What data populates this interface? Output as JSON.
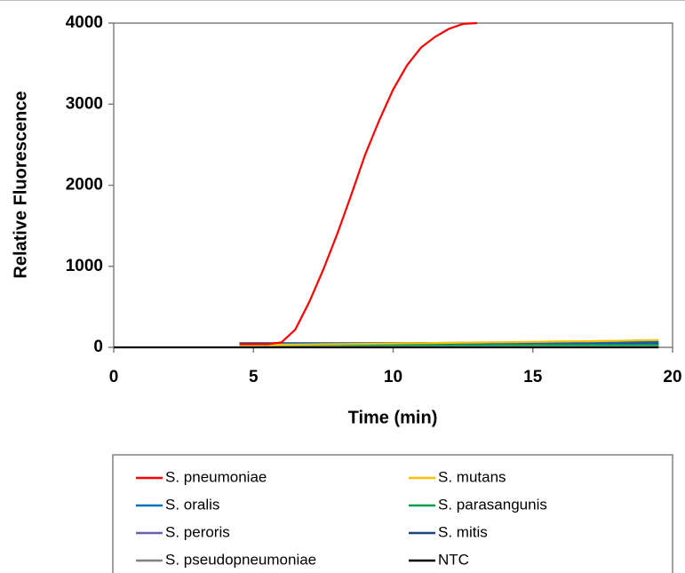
{
  "chart_data": {
    "type": "line",
    "xlabel": "Time (min)",
    "ylabel": "Relative Fluorescence",
    "x": [
      0,
      0.5,
      1,
      1.5,
      2,
      2.5,
      3,
      3.5,
      4,
      4.5,
      5,
      5.5,
      6,
      6.5,
      7,
      7.5,
      8,
      8.5,
      9,
      9.5,
      10,
      10.5,
      11,
      11.5,
      12,
      12.5,
      13,
      13.5,
      14,
      14.5,
      15,
      15.5,
      16,
      16.5,
      17,
      17.5,
      18,
      18.5,
      19,
      19.5
    ],
    "xlim": [
      0,
      20
    ],
    "xticks": [
      0,
      5,
      10,
      15,
      20
    ],
    "ylim": [
      0,
      4000
    ],
    "yticks": [
      0,
      1000,
      2000,
      3000,
      4000
    ],
    "legend": "bottom",
    "series": [
      {
        "name": "S. pneumoniae",
        "color": "#ff0000",
        "values": [
          null,
          null,
          null,
          null,
          null,
          null,
          null,
          null,
          null,
          40,
          40,
          40,
          60,
          220,
          560,
          960,
          1400,
          1880,
          2380,
          2800,
          3180,
          3480,
          3700,
          3830,
          3930,
          3990,
          4000,
          null,
          null,
          null,
          null,
          null,
          null,
          null,
          null,
          null,
          null,
          null,
          null,
          null
        ]
      },
      {
        "name": "S. mutans",
        "color": "#ffc000",
        "values": [
          null,
          null,
          null,
          null,
          null,
          null,
          null,
          null,
          null,
          30,
          30,
          32,
          33,
          35,
          36,
          38,
          40,
          42,
          44,
          46,
          48,
          50,
          52,
          54,
          56,
          58,
          60,
          62,
          64,
          66,
          68,
          70,
          72,
          74,
          76,
          78,
          80,
          84,
          88,
          90
        ]
      },
      {
        "name": "S. oralis",
        "color": "#0070c0",
        "values": [
          null,
          null,
          null,
          null,
          null,
          null,
          null,
          null,
          null,
          40,
          41,
          42,
          43,
          44,
          45,
          46,
          47,
          48,
          49,
          50,
          51,
          52,
          53,
          54,
          55,
          56,
          57,
          58,
          59,
          60,
          61,
          62,
          63,
          64,
          65,
          66,
          67,
          68,
          69,
          70
        ]
      },
      {
        "name": "S. parasangunis",
        "color": "#00a050",
        "values": [
          null,
          null,
          null,
          null,
          null,
          null,
          null,
          null,
          null,
          30,
          30,
          30,
          30,
          30,
          30,
          30,
          30,
          30,
          30,
          30,
          30,
          30,
          30,
          30,
          30,
          30,
          30,
          30,
          30,
          30,
          30,
          30,
          30,
          30,
          30,
          30,
          30,
          30,
          30,
          30
        ]
      },
      {
        "name": "S. peroris",
        "color": "#7060b0",
        "values": [
          null,
          null,
          null,
          null,
          null,
          null,
          null,
          null,
          null,
          35,
          35,
          35,
          35,
          35,
          35,
          35,
          35,
          35,
          35,
          35,
          35,
          35,
          35,
          35,
          35,
          35,
          35,
          35,
          35,
          35,
          35,
          35,
          35,
          35,
          35,
          35,
          35,
          35,
          35,
          35
        ]
      },
      {
        "name": "S. mitis",
        "color": "#1f3f7f",
        "values": [
          null,
          null,
          null,
          null,
          null,
          null,
          null,
          null,
          null,
          50,
          50,
          50,
          50,
          50,
          50,
          50,
          50,
          50,
          50,
          50,
          50,
          50,
          50,
          50,
          50,
          50,
          50,
          50,
          50,
          50,
          50,
          50,
          50,
          50,
          50,
          50,
          50,
          50,
          50,
          50
        ]
      },
      {
        "name": "S. pseudopneumoniae",
        "color": "#808080",
        "values": [
          null,
          null,
          null,
          null,
          null,
          null,
          null,
          null,
          null,
          25,
          25,
          25,
          25,
          25,
          25,
          25,
          25,
          25,
          25,
          25,
          25,
          25,
          25,
          25,
          25,
          25,
          25,
          25,
          25,
          25,
          25,
          25,
          25,
          25,
          25,
          25,
          25,
          25,
          25,
          25
        ]
      },
      {
        "name": "NTC",
        "color": "#000000",
        "values": [
          0,
          0,
          0,
          0,
          0,
          0,
          0,
          0,
          0,
          0,
          0,
          0,
          0,
          0,
          0,
          0,
          0,
          0,
          0,
          0,
          0,
          0,
          0,
          0,
          0,
          0,
          0,
          0,
          0,
          0,
          0,
          0,
          0,
          0,
          0,
          0,
          0,
          0,
          0,
          0
        ]
      }
    ]
  }
}
